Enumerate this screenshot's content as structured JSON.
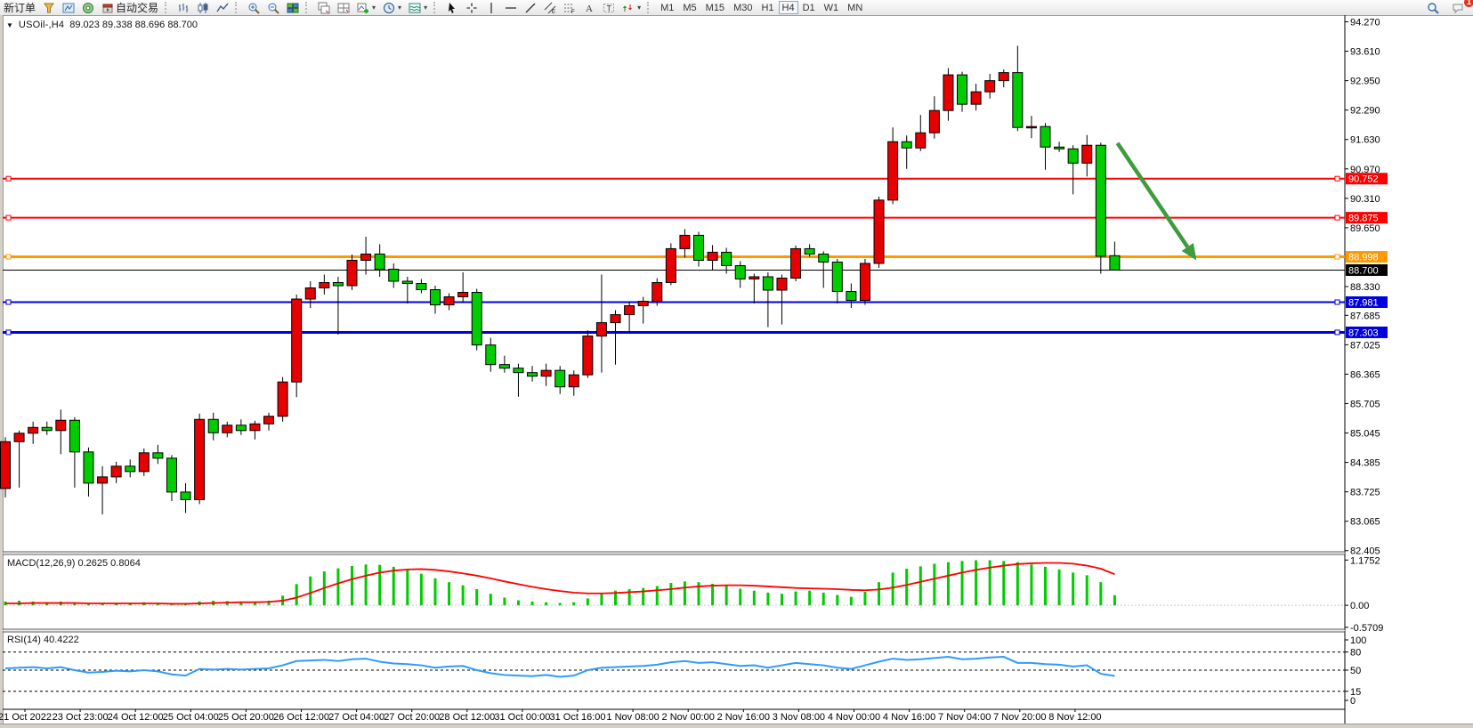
{
  "toolbar": {
    "new_order_label": "新订单",
    "autotrading_label": "自动交易",
    "left_icons": [
      "funnel-icon",
      "chart-window-icon",
      "radio-icon"
    ],
    "chart_type_icons": [
      "bar-chart-icon",
      "candlestick-icon",
      "line-chart-icon"
    ],
    "zoom_icons": [
      "zoom-in-icon",
      "zoom-out-icon",
      "tiles-icon"
    ],
    "layout_icons": [
      "layout-cascade-icon",
      "layout-tile-icon"
    ],
    "dropdown_icons": [
      "add-indicator-icon",
      "clock-icon",
      "template-icon"
    ],
    "drawing_icons": [
      "cursor-icon",
      "crosshair-icon",
      "vline-icon",
      "hline-icon",
      "trendline-icon",
      "channel-icon",
      "fibo-icon",
      "text-icon",
      "label-icon",
      "arrows-icon"
    ],
    "timeframes": [
      "M1",
      "M5",
      "M15",
      "M30",
      "H1",
      "H4",
      "D1",
      "W1",
      "MN"
    ],
    "active_timeframe": "H4",
    "notification_count": "1"
  },
  "chart": {
    "symbol_period": "USOil-,H4",
    "ohlc_text": "89.023 89.338 88.696 88.700",
    "macd_label": "MACD(12,26,9) 0.2625 0.8064",
    "rsi_label": "RSI(14) 40.4222"
  },
  "chart_data": {
    "type": "candlestick",
    "symbol": "USOil-",
    "timeframe": "H4",
    "title": "USOil-,H4 89.023 89.338 88.696 88.700",
    "last_bar": {
      "open": 89.023,
      "high": 89.338,
      "low": 88.696,
      "close": 88.7
    },
    "up_color": "#e60000",
    "down_color": "#00cc00",
    "grid": false,
    "price_axis": {
      "min": 82.38,
      "max": 94.4,
      "ticks": [
        "94.270",
        "93.610",
        "92.950",
        "92.290",
        "91.630",
        "90.970",
        "90.310",
        "89.650",
        "88.330",
        "87.685",
        "87.025",
        "86.365",
        "85.705",
        "85.045",
        "84.385",
        "83.725",
        "83.065",
        "82.405"
      ]
    },
    "horizontal_lines": [
      {
        "price": 90.752,
        "label": "90.752",
        "color": "#ff0000",
        "width": 2,
        "handles": true
      },
      {
        "price": 89.875,
        "label": "89.875",
        "color": "#ff0000",
        "width": 2,
        "handles": true
      },
      {
        "price": 88.998,
        "label": "88.998",
        "color": "#ff9900",
        "width": 3,
        "handles": true
      },
      {
        "price": 88.7,
        "label": "88.700",
        "color": "#000000",
        "width": 1,
        "handles": false
      },
      {
        "price": 87.981,
        "label": "87.981",
        "color": "#0000dd",
        "width": 2,
        "handles": true
      },
      {
        "price": 87.303,
        "label": "87.303",
        "color": "#0000dd",
        "width": 3,
        "handles": true
      }
    ],
    "candles": [
      [
        83.8,
        84.95,
        83.6,
        84.85
      ],
      [
        84.85,
        85.1,
        83.82,
        85.04
      ],
      [
        85.04,
        85.3,
        84.8,
        85.17
      ],
      [
        85.17,
        85.3,
        85.0,
        85.1
      ],
      [
        85.1,
        85.57,
        84.57,
        85.33
      ],
      [
        85.33,
        85.4,
        83.82,
        84.62
      ],
      [
        84.62,
        84.72,
        83.62,
        83.92
      ],
      [
        83.92,
        84.3,
        83.22,
        84.06
      ],
      [
        84.06,
        84.4,
        83.92,
        84.3
      ],
      [
        84.3,
        84.45,
        84.05,
        84.18
      ],
      [
        84.18,
        84.7,
        84.08,
        84.6
      ],
      [
        84.6,
        84.78,
        84.35,
        84.48
      ],
      [
        84.48,
        84.55,
        83.52,
        83.72
      ],
      [
        83.72,
        83.92,
        83.25,
        83.55
      ],
      [
        83.55,
        85.48,
        83.45,
        85.35
      ],
      [
        85.35,
        85.5,
        84.88,
        85.05
      ],
      [
        85.05,
        85.3,
        84.95,
        85.22
      ],
      [
        85.22,
        85.35,
        85.0,
        85.1
      ],
      [
        85.1,
        85.32,
        84.9,
        85.25
      ],
      [
        85.25,
        85.5,
        85.1,
        85.42
      ],
      [
        85.42,
        86.3,
        85.3,
        86.19
      ],
      [
        86.19,
        88.15,
        85.85,
        88.05
      ],
      [
        88.05,
        88.45,
        87.85,
        88.3
      ],
      [
        88.3,
        88.6,
        88.15,
        88.42
      ],
      [
        88.42,
        88.55,
        87.25,
        88.35
      ],
      [
        88.35,
        89.05,
        88.25,
        88.92
      ],
      [
        88.92,
        89.45,
        88.6,
        89.06
      ],
      [
        89.06,
        89.28,
        88.55,
        88.72
      ],
      [
        88.72,
        88.85,
        88.3,
        88.45
      ],
      [
        88.45,
        88.55,
        87.95,
        88.4
      ],
      [
        88.4,
        88.5,
        88.18,
        88.26
      ],
      [
        88.26,
        88.35,
        87.72,
        87.92
      ],
      [
        87.92,
        88.18,
        87.8,
        88.1
      ],
      [
        88.1,
        88.65,
        87.98,
        88.2
      ],
      [
        88.2,
        88.28,
        86.9,
        87.02
      ],
      [
        87.02,
        87.18,
        86.42,
        86.58
      ],
      [
        86.58,
        86.78,
        86.4,
        86.5
      ],
      [
        86.5,
        86.6,
        85.86,
        86.4
      ],
      [
        86.4,
        86.55,
        86.2,
        86.32
      ],
      [
        86.32,
        86.6,
        86.1,
        86.45
      ],
      [
        86.45,
        86.55,
        85.92,
        86.08
      ],
      [
        86.08,
        86.45,
        85.88,
        86.35
      ],
      [
        86.35,
        87.35,
        86.28,
        87.22
      ],
      [
        87.22,
        88.6,
        86.4,
        87.52
      ],
      [
        87.52,
        87.8,
        86.58,
        87.7
      ],
      [
        87.7,
        88.0,
        87.3,
        87.9
      ],
      [
        87.9,
        88.1,
        87.5,
        88.0
      ],
      [
        88.0,
        88.52,
        87.9,
        88.42
      ],
      [
        88.42,
        89.3,
        88.36,
        89.18
      ],
      [
        89.18,
        89.62,
        88.98,
        89.48
      ],
      [
        89.48,
        89.56,
        88.78,
        88.92
      ],
      [
        88.92,
        89.26,
        88.7,
        89.1
      ],
      [
        89.1,
        89.2,
        88.62,
        88.8
      ],
      [
        88.8,
        88.9,
        88.3,
        88.5
      ],
      [
        88.5,
        88.62,
        87.95,
        88.55
      ],
      [
        88.55,
        88.65,
        87.42,
        88.25
      ],
      [
        88.25,
        88.6,
        87.48,
        88.52
      ],
      [
        88.52,
        89.25,
        88.45,
        89.18
      ],
      [
        89.18,
        89.28,
        89.0,
        89.06
      ],
      [
        89.06,
        89.12,
        88.3,
        88.88
      ],
      [
        88.88,
        88.95,
        87.95,
        88.22
      ],
      [
        88.22,
        88.4,
        87.85,
        88.02
      ],
      [
        88.02,
        88.95,
        87.92,
        88.85
      ],
      [
        88.85,
        90.35,
        88.75,
        90.27
      ],
      [
        90.27,
        91.9,
        90.18,
        91.58
      ],
      [
        91.58,
        91.72,
        90.97,
        91.44
      ],
      [
        91.44,
        92.18,
        91.37,
        91.78
      ],
      [
        91.78,
        92.6,
        91.65,
        92.28
      ],
      [
        92.28,
        93.23,
        92.05,
        93.08
      ],
      [
        93.08,
        93.15,
        92.25,
        92.42
      ],
      [
        92.42,
        92.88,
        92.28,
        92.7
      ],
      [
        92.7,
        93.1,
        92.55,
        92.95
      ],
      [
        92.95,
        93.2,
        92.8,
        93.13
      ],
      [
        93.13,
        93.73,
        91.82,
        91.9
      ],
      [
        91.9,
        92.16,
        91.66,
        91.92
      ],
      [
        91.92,
        92.0,
        90.95,
        91.46
      ],
      [
        91.46,
        91.58,
        91.35,
        91.42
      ],
      [
        91.42,
        91.5,
        90.4,
        91.1
      ],
      [
        91.1,
        91.73,
        90.8,
        91.5
      ],
      [
        91.5,
        91.56,
        88.62,
        89.01
      ],
      [
        89.023,
        89.338,
        88.696,
        88.7
      ]
    ],
    "macd": {
      "name": "MACD(12,26,9)",
      "hist_value": 0.2625,
      "signal_value": 0.8064,
      "hist_color": "#00cc00",
      "signal_color": "#ff0000",
      "range": [
        -0.62,
        1.32
      ],
      "scale_labels": [
        "1.1752",
        "0.00",
        "-0.5709"
      ],
      "scale_values": [
        1.1752,
        0,
        -0.5709
      ],
      "histogram": [
        0.1,
        0.12,
        0.1,
        0.08,
        0.1,
        0.06,
        0.03,
        0.04,
        0.06,
        0.05,
        0.08,
        0.06,
        0.03,
        0.02,
        0.1,
        0.12,
        0.11,
        0.09,
        0.08,
        0.12,
        0.25,
        0.55,
        0.75,
        0.88,
        0.96,
        1.02,
        1.06,
        1.05,
        1.0,
        0.92,
        0.82,
        0.7,
        0.6,
        0.52,
        0.42,
        0.3,
        0.2,
        0.13,
        0.1,
        0.08,
        0.06,
        0.08,
        0.18,
        0.3,
        0.38,
        0.42,
        0.45,
        0.5,
        0.58,
        0.62,
        0.6,
        0.56,
        0.5,
        0.43,
        0.38,
        0.33,
        0.3,
        0.36,
        0.38,
        0.33,
        0.27,
        0.22,
        0.35,
        0.6,
        0.85,
        0.95,
        1.01,
        1.08,
        1.12,
        1.15,
        1.17,
        1.17,
        1.15,
        1.12,
        1.06,
        1.0,
        0.93,
        0.85,
        0.78,
        0.6,
        0.2625
      ],
      "signal": [
        0.05,
        0.05,
        0.06,
        0.06,
        0.06,
        0.06,
        0.05,
        0.05,
        0.05,
        0.05,
        0.05,
        0.05,
        0.04,
        0.04,
        0.05,
        0.06,
        0.07,
        0.08,
        0.08,
        0.09,
        0.12,
        0.2,
        0.32,
        0.45,
        0.57,
        0.68,
        0.77,
        0.85,
        0.9,
        0.93,
        0.94,
        0.92,
        0.88,
        0.83,
        0.77,
        0.7,
        0.62,
        0.55,
        0.48,
        0.42,
        0.37,
        0.33,
        0.31,
        0.31,
        0.32,
        0.34,
        0.36,
        0.39,
        0.42,
        0.46,
        0.49,
        0.51,
        0.52,
        0.52,
        0.51,
        0.49,
        0.47,
        0.45,
        0.44,
        0.43,
        0.42,
        0.4,
        0.39,
        0.41,
        0.46,
        0.53,
        0.61,
        0.69,
        0.77,
        0.85,
        0.92,
        0.98,
        1.03,
        1.07,
        1.09,
        1.1,
        1.1,
        1.08,
        1.03,
        0.95,
        0.8064
      ]
    },
    "rsi": {
      "name": "RSI(14)",
      "value": 40.4222,
      "color": "#2e9bff",
      "scale_labels": [
        "100",
        "80",
        "50",
        "15",
        "0"
      ],
      "scale_values": [
        100,
        80,
        50,
        15,
        0
      ],
      "levels": [
        80,
        50,
        15
      ],
      "values": [
        53,
        54,
        55,
        53,
        55,
        50,
        46,
        47,
        49,
        48,
        50,
        48,
        43,
        41,
        52,
        51,
        52,
        51,
        52,
        53,
        58,
        65,
        66,
        67,
        65,
        68,
        69,
        64,
        61,
        60,
        58,
        54,
        56,
        57,
        50,
        45,
        42,
        41,
        40,
        42,
        39,
        41,
        50,
        54,
        55,
        56,
        57,
        59,
        63,
        65,
        62,
        63,
        60,
        57,
        58,
        54,
        58,
        62,
        60,
        58,
        54,
        52,
        58,
        64,
        69,
        67,
        68,
        70,
        72,
        68,
        69,
        71,
        72,
        62,
        62,
        60,
        59,
        56,
        58,
        44,
        40.4
      ]
    },
    "time_labels": [
      "21 Oct 2022",
      "23 Oct 23:00",
      "24 Oct 12:00",
      "25 Oct 04:00",
      "25 Oct 20:00",
      "26 Oct 12:00",
      "27 Oct 04:00",
      "27 Oct 20:00",
      "28 Oct 12:00",
      "31 Oct 00:00",
      "31 Oct 16:00",
      "1 Nov 08:00",
      "2 Nov 00:00",
      "2 Nov 16:00",
      "3 Nov 08:00",
      "4 Nov 00:00",
      "4 Nov 16:00",
      "7 Nov 04:00",
      "7 Nov 20:00",
      "8 Nov 12:00"
    ],
    "annotation_arrow": {
      "color": "#3e9b3e",
      "from_bar": 80.2,
      "from_price": 91.55,
      "to_bar": 85.9,
      "to_price": 88.92
    }
  }
}
